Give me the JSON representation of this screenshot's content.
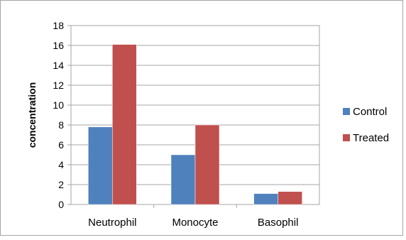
{
  "chart_data": {
    "type": "bar",
    "categories": [
      "Neutrophil",
      "Monocyte",
      "Basophil"
    ],
    "series": [
      {
        "name": "Control",
        "values": [
          7.8,
          5.0,
          1.1
        ],
        "color": "#4f81bd"
      },
      {
        "name": "Treated",
        "values": [
          16.1,
          8.0,
          1.3
        ],
        "color": "#c0504d"
      }
    ],
    "title": "",
    "xlabel": "",
    "ylabel": "concentration",
    "ylim": [
      0,
      18
    ],
    "yticks": [
      "0",
      "2",
      "4",
      "6",
      "8",
      "10",
      "12",
      "14",
      "16",
      "18"
    ],
    "grid": true,
    "legend_position": "right"
  }
}
